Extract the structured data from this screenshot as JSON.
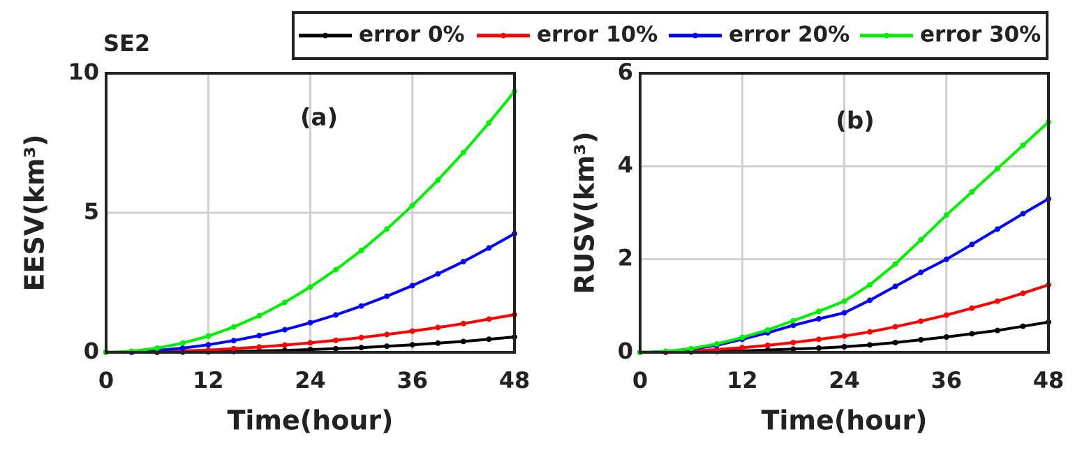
{
  "figure_label": "SE2",
  "chart_data": [
    {
      "type": "line",
      "annotation": "(a)",
      "xlabel": "Time(hour)",
      "ylabel": "EESV(km³)",
      "x": [
        0,
        3,
        6,
        9,
        12,
        15,
        18,
        21,
        24,
        27,
        30,
        33,
        36,
        39,
        42,
        45,
        48
      ],
      "xlim": [
        0,
        48
      ],
      "xticks": [
        0,
        12,
        24,
        36,
        48
      ],
      "ylim": [
        0,
        10
      ],
      "yticks": [
        0,
        5,
        10
      ],
      "grid": true,
      "legend": "top-right",
      "series": [
        {
          "name": "error 0%",
          "color": "#000000",
          "values": [
            0,
            0,
            0,
            0.01,
            0.02,
            0.03,
            0.05,
            0.07,
            0.1,
            0.13,
            0.17,
            0.22,
            0.27,
            0.33,
            0.39,
            0.47,
            0.55
          ]
        },
        {
          "name": "error 10%",
          "color": "#ff0000",
          "values": [
            0,
            0.01,
            0.02,
            0.05,
            0.08,
            0.13,
            0.19,
            0.26,
            0.34,
            0.43,
            0.53,
            0.64,
            0.76,
            0.89,
            1.03,
            1.19,
            1.35
          ]
        },
        {
          "name": "error 20%",
          "color": "#0000ff",
          "values": [
            0,
            0.02,
            0.07,
            0.15,
            0.27,
            0.42,
            0.6,
            0.81,
            1.06,
            1.34,
            1.66,
            2.01,
            2.39,
            2.81,
            3.25,
            3.74,
            4.25
          ]
        },
        {
          "name": "error 30%",
          "color": "#00ee00",
          "values": [
            0,
            0.04,
            0.15,
            0.33,
            0.58,
            0.91,
            1.31,
            1.79,
            2.34,
            2.96,
            3.65,
            4.42,
            5.26,
            6.17,
            7.16,
            8.22,
            9.35
          ]
        }
      ]
    },
    {
      "type": "line",
      "annotation": "(b)",
      "xlabel": "Time(hour)",
      "ylabel": "RUSV(km³)",
      "x": [
        0,
        3,
        6,
        9,
        12,
        15,
        18,
        21,
        24,
        27,
        30,
        33,
        36,
        39,
        42,
        45,
        48
      ],
      "xlim": [
        0,
        48
      ],
      "xticks": [
        0,
        12,
        24,
        36,
        48
      ],
      "ylim": [
        0,
        6
      ],
      "yticks": [
        0,
        2,
        4,
        6
      ],
      "grid": true,
      "series": [
        {
          "color": "#000000",
          "values": [
            0,
            0,
            0.01,
            0.02,
            0.03,
            0.05,
            0.07,
            0.09,
            0.12,
            0.16,
            0.21,
            0.27,
            0.33,
            0.4,
            0.47,
            0.56,
            0.65
          ]
        },
        {
          "color": "#ff0000",
          "values": [
            0,
            0.01,
            0.03,
            0.06,
            0.1,
            0.15,
            0.21,
            0.28,
            0.35,
            0.44,
            0.55,
            0.67,
            0.8,
            0.95,
            1.1,
            1.27,
            1.45
          ]
        },
        {
          "color": "#0000ff",
          "values": [
            0,
            0.02,
            0.07,
            0.15,
            0.28,
            0.42,
            0.58,
            0.72,
            0.85,
            1.12,
            1.42,
            1.72,
            2.0,
            2.32,
            2.65,
            2.98,
            3.3
          ]
        },
        {
          "color": "#00ee00",
          "values": [
            0,
            0.02,
            0.08,
            0.18,
            0.32,
            0.48,
            0.68,
            0.88,
            1.1,
            1.45,
            1.9,
            2.42,
            2.95,
            3.45,
            3.95,
            4.45,
            4.95
          ]
        }
      ]
    }
  ]
}
